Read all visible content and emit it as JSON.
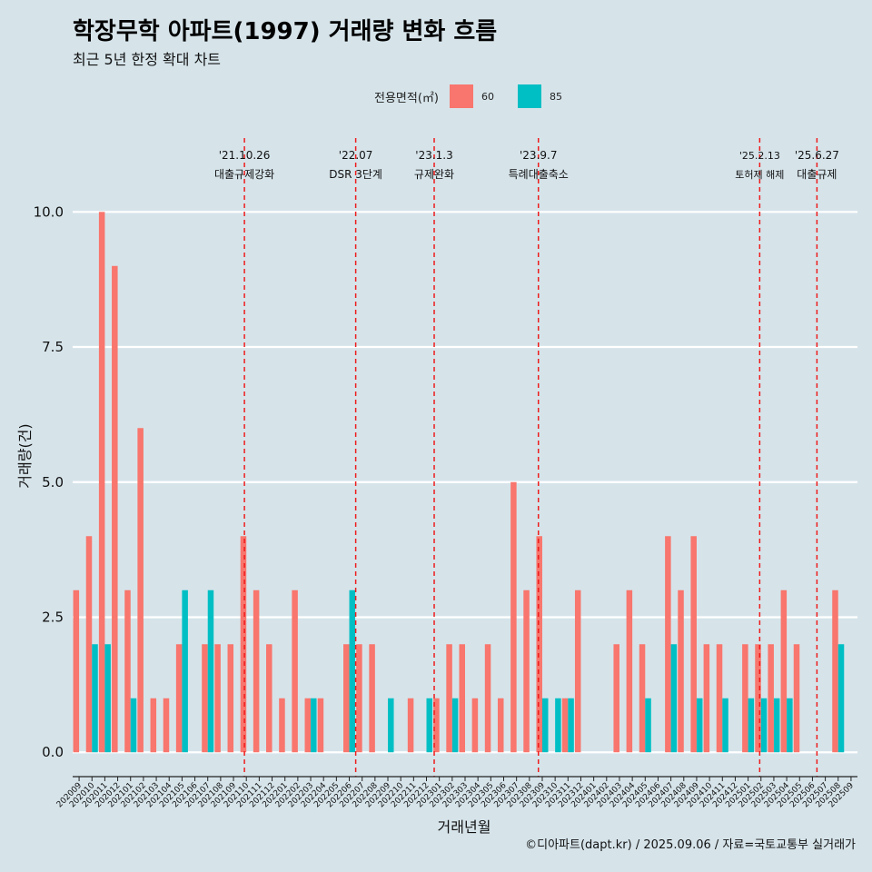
{
  "title": "학장무학 아파트(1997) 거래량 변화 흐름",
  "subtitle": "최근 5년 한정 확대 차트",
  "caption": "©디아파트(dapt.kr) / 2025.09.06 / 자료=국토교통부 실거래가",
  "legend": {
    "title": "전용면적(㎡)",
    "items": [
      {
        "label": "60",
        "color": "#f8766d"
      },
      {
        "label": "85",
        "color": "#00bfc4"
      }
    ]
  },
  "chart_data": {
    "type": "bar",
    "xlabel": "거래년월",
    "ylabel": "거래량(건)",
    "ylim": [
      -0.45,
      11.4
    ],
    "yticks": [
      "0.0",
      "2.5",
      "5.0",
      "7.5",
      "10.0"
    ],
    "categories": [
      "202009",
      "202010",
      "202011",
      "202012",
      "202101",
      "202102",
      "202103",
      "202104",
      "202105",
      "202106",
      "202107",
      "202108",
      "202109",
      "202110",
      "202111",
      "202112",
      "202201",
      "202202",
      "202203",
      "202204",
      "202205",
      "202206",
      "202207",
      "202208",
      "202209",
      "202210",
      "202211",
      "202212",
      "202301",
      "202302",
      "202303",
      "202304",
      "202305",
      "202306",
      "202307",
      "202308",
      "202309",
      "202310",
      "202311",
      "202312",
      "202401",
      "202402",
      "202403",
      "202404",
      "202405",
      "202406",
      "202407",
      "202408",
      "202409",
      "202410",
      "202411",
      "202412",
      "202501",
      "202502",
      "202503",
      "202504",
      "202505",
      "202506",
      "202507",
      "202508",
      "202509"
    ],
    "series": [
      {
        "name": "60",
        "color": "#f8766d",
        "values": [
          3,
          4,
          10,
          9,
          3,
          6,
          1,
          1,
          2,
          0,
          2,
          2,
          2,
          4,
          3,
          2,
          1,
          3,
          1,
          1,
          0,
          2,
          2,
          2,
          0,
          0,
          1,
          0,
          1,
          2,
          2,
          1,
          2,
          1,
          5,
          3,
          4,
          0,
          1,
          3,
          0,
          0,
          2,
          3,
          2,
          0,
          4,
          3,
          4,
          2,
          2,
          0,
          2,
          2,
          2,
          3,
          2,
          0,
          0,
          3,
          0
        ]
      },
      {
        "name": "85",
        "color": "#00bfc4",
        "values": [
          0,
          2,
          2,
          0,
          1,
          0,
          0,
          0,
          3,
          0,
          3,
          0,
          0,
          0,
          0,
          0,
          0,
          0,
          1,
          0,
          0,
          3,
          0,
          0,
          1,
          0,
          0,
          1,
          0,
          1,
          0,
          0,
          0,
          0,
          0,
          0,
          1,
          1,
          1,
          0,
          0,
          0,
          0,
          0,
          1,
          0,
          2,
          0,
          1,
          0,
          1,
          0,
          1,
          1,
          1,
          1,
          0,
          0,
          0,
          2,
          0
        ]
      }
    ],
    "events": [
      {
        "date": "'21.10.26",
        "label": "대출규제강화",
        "category": "202110",
        "offset": 0.35
      },
      {
        "date": "'22.07",
        "label": "DSR 3단계",
        "category": "202207",
        "offset": 0.0
      },
      {
        "date": "'23.1.3",
        "label": "규제완화",
        "category": "202301",
        "offset": 0.1
      },
      {
        "date": "'23.9.7",
        "label": "특례대출축소",
        "category": "202309",
        "offset": 0.2
      },
      {
        "date": "'25.2.13",
        "label": "토허제 해제",
        "category": "202502",
        "offset": 0.4
      },
      {
        "date": "'25.6.27",
        "label": "대출규제",
        "category": "202506",
        "offset": 0.85
      }
    ]
  }
}
